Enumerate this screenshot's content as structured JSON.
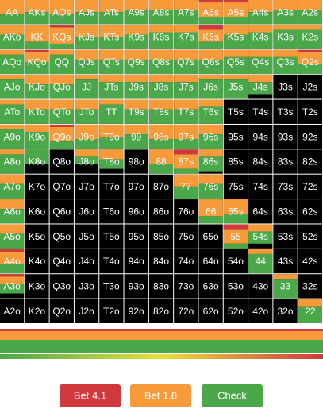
{
  "grid": {
    "hands": [
      [
        "AA",
        "AKs",
        "AQs",
        "AJs",
        "ATs",
        "A9s",
        "A8s",
        "A7s",
        "A6s",
        "A5s",
        "A4s",
        "A3s",
        "A2s"
      ],
      [
        "AKo",
        "KK",
        "KQs",
        "KJs",
        "KTs",
        "K9s",
        "K8s",
        "K7s",
        "K6s",
        "K5s",
        "K4s",
        "K3s",
        "K2s"
      ],
      [
        "AQo",
        "KQo",
        "QQ",
        "QJs",
        "QTs",
        "Q9s",
        "Q8s",
        "Q7s",
        "Q6s",
        "Q5s",
        "Q4s",
        "Q3s",
        "Q2s"
      ],
      [
        "AJo",
        "KJo",
        "QJo",
        "JJ",
        "JTs",
        "J9s",
        "J8s",
        "J7s",
        "J6s",
        "J5s",
        "J4s",
        "J3s",
        "J2s"
      ],
      [
        "ATo",
        "KTo",
        "QTo",
        "JTo",
        "TT",
        "T9s",
        "T8s",
        "T7s",
        "T6s",
        "T5s",
        "T4s",
        "T3s",
        "T2s"
      ],
      [
        "A9o",
        "K9o",
        "Q9o",
        "J9o",
        "T9o",
        "99",
        "98s",
        "97s",
        "96s",
        "95s",
        "94s",
        "93s",
        "92s"
      ],
      [
        "A8o",
        "K8o",
        "Q8o",
        "J8o",
        "T8o",
        "98o",
        "88",
        "87s",
        "86s",
        "85s",
        "84s",
        "83s",
        "82s"
      ],
      [
        "A7o",
        "K7o",
        "Q7o",
        "J7o",
        "T7o",
        "97o",
        "87o",
        "77",
        "76s",
        "75s",
        "74s",
        "73s",
        "72s"
      ],
      [
        "A6o",
        "K6o",
        "Q6o",
        "J6o",
        "T6o",
        "96o",
        "86o",
        "76o",
        "66",
        "65s",
        "64s",
        "63s",
        "62s"
      ],
      [
        "A5o",
        "K5o",
        "Q5o",
        "J5o",
        "T5o",
        "95o",
        "85o",
        "75o",
        "65o",
        "55",
        "54s",
        "53s",
        "52s"
      ],
      [
        "A4o",
        "K4o",
        "Q4o",
        "J4o",
        "T4o",
        "94o",
        "84o",
        "74o",
        "64o",
        "54o",
        "44",
        "43s",
        "42s"
      ],
      [
        "A3o",
        "K3o",
        "Q3o",
        "J3o",
        "T3o",
        "93o",
        "83o",
        "73o",
        "63o",
        "53o",
        "43o",
        "33",
        "32s"
      ],
      [
        "A2o",
        "K2o",
        "Q2o",
        "J2o",
        "T2o",
        "92o",
        "82o",
        "72o",
        "62o",
        "52o",
        "42o",
        "32o",
        "22"
      ]
    ],
    "mix": [
      [
        [
          0,
          60,
          40
        ],
        [
          0,
          50,
          50
        ],
        [
          0,
          60,
          40
        ],
        [
          0,
          50,
          50
        ],
        [
          0,
          50,
          50
        ],
        [
          0,
          40,
          60
        ],
        [
          0,
          40,
          60
        ],
        [
          0,
          40,
          60
        ],
        [
          10,
          60,
          30
        ],
        [
          10,
          60,
          30
        ],
        [
          0,
          50,
          50
        ],
        [
          0,
          40,
          60
        ],
        [
          0,
          40,
          60
        ]
      ],
      [
        [
          0,
          40,
          60
        ],
        [
          0,
          70,
          30
        ],
        [
          10,
          70,
          20
        ],
        [
          0,
          50,
          50
        ],
        [
          0,
          50,
          50
        ],
        [
          0,
          40,
          60
        ],
        [
          0,
          30,
          70
        ],
        [
          0,
          30,
          70
        ],
        [
          20,
          50,
          30
        ],
        [
          0,
          40,
          60
        ],
        [
          0,
          30,
          70
        ],
        [
          0,
          20,
          80
        ],
        [
          0,
          20,
          80
        ]
      ],
      [
        [
          0,
          20,
          80
        ],
        [
          10,
          40,
          50
        ],
        [
          0,
          20,
          80
        ],
        [
          0,
          40,
          60
        ],
        [
          0,
          40,
          60
        ],
        [
          0,
          40,
          60
        ],
        [
          0,
          40,
          60
        ],
        [
          0,
          40,
          60
        ],
        [
          0,
          40,
          60
        ],
        [
          0,
          30,
          70
        ],
        [
          0,
          30,
          70
        ],
        [
          0,
          30,
          70
        ],
        [
          10,
          50,
          40
        ]
      ],
      [
        [
          0,
          20,
          80
        ],
        [
          0,
          40,
          60
        ],
        [
          0,
          40,
          60
        ],
        [
          0,
          20,
          80
        ],
        [
          0,
          30,
          70
        ],
        [
          0,
          30,
          70
        ],
        [
          0,
          30,
          70
        ],
        [
          0,
          30,
          70
        ],
        [
          0,
          20,
          80
        ],
        [
          0,
          20,
          80
        ],
        [
          0,
          30,
          50
        ],
        [
          0,
          0,
          0
        ],
        [
          0,
          0,
          0
        ]
      ],
      [
        [
          0,
          20,
          80
        ],
        [
          0,
          40,
          60
        ],
        [
          0,
          40,
          60
        ],
        [
          0,
          40,
          60
        ],
        [
          0,
          20,
          80
        ],
        [
          0,
          40,
          60
        ],
        [
          0,
          40,
          60
        ],
        [
          0,
          40,
          60
        ],
        [
          0,
          30,
          70
        ],
        [
          0,
          0,
          0
        ],
        [
          0,
          0,
          0
        ],
        [
          0,
          0,
          0
        ],
        [
          0,
          0,
          0
        ]
      ],
      [
        [
          0,
          20,
          80
        ],
        [
          0,
          30,
          70
        ],
        [
          10,
          60,
          30
        ],
        [
          0,
          60,
          40
        ],
        [
          0,
          50,
          50
        ],
        [
          0,
          40,
          60
        ],
        [
          0,
          60,
          40
        ],
        [
          0,
          60,
          40
        ],
        [
          0,
          40,
          60
        ],
        [
          0,
          0,
          0
        ],
        [
          0,
          0,
          0
        ],
        [
          0,
          0,
          0
        ],
        [
          0,
          0,
          0
        ]
      ],
      [
        [
          0,
          20,
          80
        ],
        [
          0,
          0,
          60
        ],
        [
          0,
          0,
          0
        ],
        [
          0,
          30,
          30
        ],
        [
          0,
          40,
          40
        ],
        [
          0,
          0,
          0
        ],
        [
          0,
          60,
          40
        ],
        [
          20,
          60,
          20
        ],
        [
          0,
          30,
          60
        ],
        [
          0,
          0,
          0
        ],
        [
          0,
          0,
          0
        ],
        [
          0,
          0,
          0
        ],
        [
          0,
          0,
          0
        ]
      ],
      [
        [
          0,
          40,
          60
        ],
        [
          0,
          0,
          0
        ],
        [
          0,
          0,
          0
        ],
        [
          0,
          0,
          0
        ],
        [
          0,
          0,
          0
        ],
        [
          0,
          0,
          0
        ],
        [
          0,
          0,
          0
        ],
        [
          0,
          50,
          50
        ],
        [
          0,
          40,
          60
        ],
        [
          0,
          0,
          0
        ],
        [
          0,
          0,
          0
        ],
        [
          0,
          0,
          0
        ],
        [
          0,
          0,
          0
        ]
      ],
      [
        [
          0,
          40,
          60
        ],
        [
          0,
          0,
          0
        ],
        [
          0,
          0,
          0
        ],
        [
          0,
          0,
          0
        ],
        [
          0,
          0,
          0
        ],
        [
          0,
          0,
          0
        ],
        [
          0,
          0,
          0
        ],
        [
          0,
          0,
          0
        ],
        [
          0,
          70,
          30
        ],
        [
          0,
          60,
          40
        ],
        [
          0,
          0,
          0
        ],
        [
          0,
          0,
          0
        ],
        [
          0,
          0,
          0
        ]
      ],
      [
        [
          0,
          40,
          60
        ],
        [
          0,
          0,
          0
        ],
        [
          0,
          0,
          0
        ],
        [
          0,
          0,
          0
        ],
        [
          0,
          0,
          0
        ],
        [
          0,
          0,
          0
        ],
        [
          0,
          0,
          0
        ],
        [
          0,
          0,
          0
        ],
        [
          0,
          0,
          0
        ],
        [
          20,
          60,
          20
        ],
        [
          0,
          30,
          50
        ],
        [
          0,
          0,
          0
        ],
        [
          0,
          0,
          0
        ]
      ],
      [
        [
          10,
          50,
          40
        ],
        [
          0,
          0,
          0
        ],
        [
          0,
          0,
          0
        ],
        [
          0,
          0,
          0
        ],
        [
          0,
          0,
          0
        ],
        [
          0,
          0,
          0
        ],
        [
          0,
          0,
          0
        ],
        [
          0,
          0,
          0
        ],
        [
          0,
          0,
          0
        ],
        [
          0,
          0,
          0
        ],
        [
          0,
          20,
          80
        ],
        [
          0,
          0,
          0
        ],
        [
          0,
          0,
          0
        ]
      ],
      [
        [
          10,
          30,
          40
        ],
        [
          0,
          0,
          0
        ],
        [
          0,
          0,
          0
        ],
        [
          0,
          0,
          0
        ],
        [
          0,
          0,
          0
        ],
        [
          0,
          0,
          0
        ],
        [
          0,
          0,
          0
        ],
        [
          0,
          0,
          0
        ],
        [
          0,
          0,
          0
        ],
        [
          0,
          0,
          0
        ],
        [
          0,
          0,
          0
        ],
        [
          0,
          20,
          80
        ],
        [
          0,
          0,
          0
        ]
      ],
      [
        [
          0,
          0,
          0
        ],
        [
          0,
          0,
          0
        ],
        [
          0,
          0,
          0
        ],
        [
          0,
          0,
          0
        ],
        [
          0,
          0,
          0
        ],
        [
          0,
          0,
          0
        ],
        [
          0,
          0,
          0
        ],
        [
          0,
          0,
          0
        ],
        [
          0,
          0,
          0
        ],
        [
          0,
          0,
          0
        ],
        [
          0,
          0,
          0
        ],
        [
          0,
          0,
          0
        ],
        [
          0,
          30,
          70
        ]
      ]
    ]
  },
  "actions": [
    {
      "label": "Bet 4.1",
      "color": "#d0393e"
    },
    {
      "label": "Bet 1.8",
      "color": "#f79a3a"
    },
    {
      "label": "Check",
      "color": "#4aa84a"
    }
  ]
}
